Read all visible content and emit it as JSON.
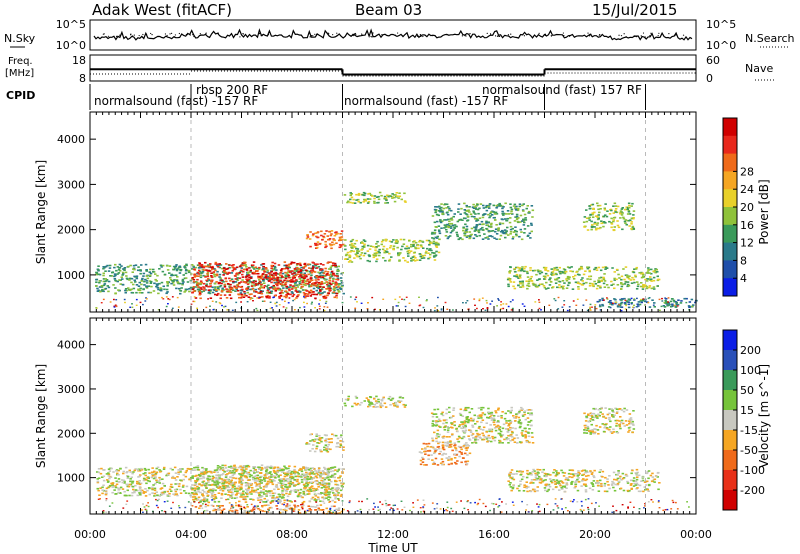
{
  "header": {
    "station": "Adak West (fitACF)",
    "beam": "Beam 03",
    "date": "15/Jul/2015"
  },
  "top_panels": {
    "nsky_label": "N.Sky",
    "nsky_ticks": [
      "10^5",
      "10^0"
    ],
    "nsearch_label": "N.Search",
    "nsearch_ticks": [
      "10^5",
      "10^0"
    ],
    "freq_label_1": "Freq.",
    "freq_label_2": "[MHz]",
    "freq_ticks": [
      "18",
      "8"
    ],
    "nave_label": "Nave",
    "nave_ticks": [
      "60",
      "0"
    ],
    "cpid_label": "CPID",
    "cpid_segments": [
      {
        "label": "normalsound (fast) -157 RF",
        "start_h": 0,
        "end_h": 10
      },
      {
        "label": "rbsp 200 RF",
        "start_h": 4,
        "end_h": 10
      },
      {
        "label": "normalsound (fast) -157 RF",
        "start_h": 10,
        "end_h": 22
      },
      {
        "label": "normalsound (fast) 157 RF",
        "start_h": 18,
        "end_h": 22
      }
    ],
    "freq_levels": [
      {
        "start_h": 0,
        "end_h": 10,
        "mhz": 12.5
      },
      {
        "start_h": 10,
        "end_h": 18,
        "mhz": 10.5
      },
      {
        "start_h": 18,
        "end_h": 24,
        "mhz": 12.5
      }
    ]
  },
  "chart_data": [
    {
      "type": "heatmap",
      "title": "",
      "xlabel": "",
      "ylabel": "Slant Range [km]",
      "x_ticks": [
        "00:00",
        "04:00",
        "08:00",
        "12:00",
        "16:00",
        "20:00",
        "00:00"
      ],
      "y_ticks": [
        "1000",
        "2000",
        "3000",
        "4000"
      ],
      "xlim_hours": [
        0,
        24
      ],
      "ylim_km": [
        180,
        4600
      ],
      "colorbar": {
        "label": "Power [dB]",
        "ticks": [
          "4",
          "8",
          "12",
          "16",
          "20",
          "24",
          "28"
        ],
        "colors": [
          "#0b1ee6",
          "#1f4faa",
          "#2a7a8a",
          "#3a9a5a",
          "#8fc23a",
          "#e8d02a",
          "#f5a623",
          "#ef6a1a",
          "#e8281c",
          "#d00000"
        ]
      },
      "regions": [
        {
          "t0": 0.2,
          "t1": 10.0,
          "r0": 600,
          "r1": 1250,
          "level": 3
        },
        {
          "t0": 4.0,
          "t1": 9.8,
          "r0": 500,
          "r1": 1300,
          "level": 8
        },
        {
          "t0": 8.5,
          "t1": 10.0,
          "r0": 1600,
          "r1": 2000,
          "level": 7
        },
        {
          "t0": 10.0,
          "t1": 12.5,
          "r0": 2600,
          "r1": 2850,
          "level": 4
        },
        {
          "t0": 10.0,
          "t1": 13.8,
          "r0": 1300,
          "r1": 1800,
          "level": 4
        },
        {
          "t0": 13.5,
          "t1": 17.5,
          "r0": 1800,
          "r1": 2600,
          "level": 3
        },
        {
          "t0": 16.5,
          "t1": 22.5,
          "r0": 700,
          "r1": 1200,
          "level": 4
        },
        {
          "t0": 19.5,
          "t1": 21.5,
          "r0": 2000,
          "r1": 2600,
          "level": 4
        },
        {
          "t0": 20.0,
          "t1": 24.0,
          "r0": 300,
          "r1": 500,
          "level": 2
        }
      ]
    },
    {
      "type": "heatmap",
      "title": "",
      "xlabel": "Time UT",
      "ylabel": "Slant Range [km]",
      "x_ticks": [
        "00:00",
        "04:00",
        "08:00",
        "12:00",
        "16:00",
        "20:00",
        "00:00"
      ],
      "y_ticks": [
        "1000",
        "2000",
        "3000",
        "4000"
      ],
      "xlim_hours": [
        0,
        24
      ],
      "ylim_km": [
        180,
        4600
      ],
      "colorbar": {
        "label": "Velocity [m s^-1]",
        "ticks": [
          "200",
          "100",
          "50",
          "15",
          "-15",
          "-50",
          "-100",
          "-200"
        ],
        "colors": [
          "#0b1ee6",
          "#2a50b8",
          "#3a9a5a",
          "#76c43a",
          "#c8c8c0",
          "#f5a623",
          "#ef6a1a",
          "#e83018",
          "#d00000"
        ]
      },
      "regions": [
        {
          "t0": 0.2,
          "t1": 10.0,
          "r0": 600,
          "r1": 1250,
          "level": 4
        },
        {
          "t0": 4.0,
          "t1": 9.8,
          "r0": 450,
          "r1": 1300,
          "level": 4
        },
        {
          "t0": 8.5,
          "t1": 10.0,
          "r0": 1600,
          "r1": 2000,
          "level": 4
        },
        {
          "t0": 10.0,
          "t1": 12.5,
          "r0": 2600,
          "r1": 2850,
          "level": 4
        },
        {
          "t0": 13.0,
          "t1": 15.0,
          "r0": 1300,
          "r1": 1800,
          "level": 5
        },
        {
          "t0": 13.5,
          "t1": 17.5,
          "r0": 1800,
          "r1": 2600,
          "level": 4
        },
        {
          "t0": 16.5,
          "t1": 22.5,
          "r0": 700,
          "r1": 1200,
          "level": 4
        },
        {
          "t0": 19.5,
          "t1": 21.5,
          "r0": 2000,
          "r1": 2600,
          "level": 4
        },
        {
          "t0": 4.0,
          "t1": 10.0,
          "r0": 200,
          "r1": 400,
          "level": 5
        }
      ]
    }
  ]
}
